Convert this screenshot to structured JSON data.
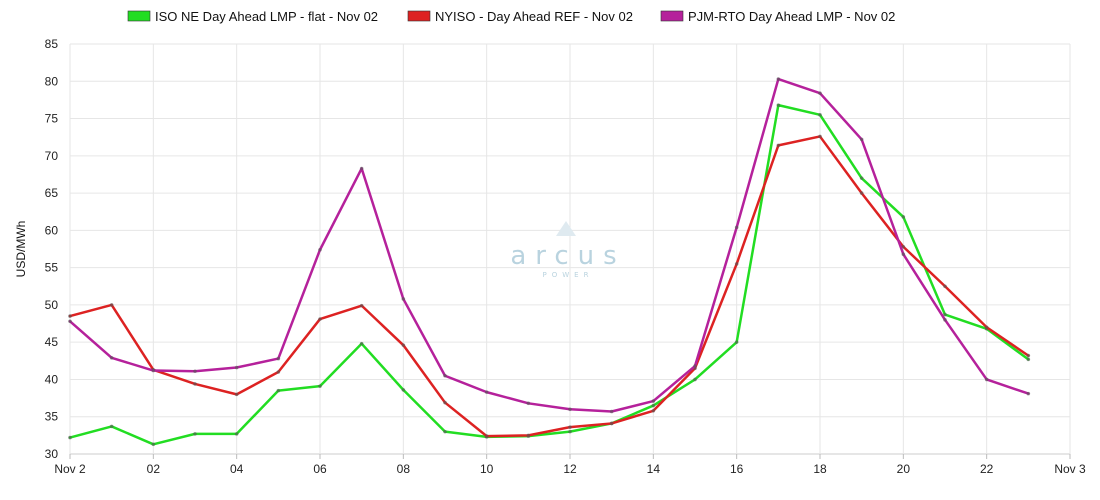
{
  "chart_data": {
    "type": "line",
    "ylabel": "USD/MWh",
    "ylim": [
      30,
      85
    ],
    "y_ticks": [
      30,
      35,
      40,
      45,
      50,
      55,
      60,
      65,
      70,
      75,
      80,
      85
    ],
    "x_ticks": [
      "Nov 2",
      "02",
      "04",
      "06",
      "08",
      "10",
      "12",
      "14",
      "16",
      "18",
      "20",
      "22",
      "Nov 3"
    ],
    "grid": true,
    "legend_position": "top",
    "x": [
      0,
      1,
      2,
      3,
      4,
      5,
      6,
      7,
      8,
      9,
      10,
      11,
      12,
      13,
      14,
      15,
      16,
      17,
      18,
      19,
      20,
      21,
      22,
      23
    ],
    "series": [
      {
        "name": "ISO NE Day Ahead LMP - flat - Nov 02",
        "color": "#22dd22",
        "values": [
          32.2,
          33.7,
          31.3,
          32.7,
          32.7,
          38.5,
          39.1,
          44.8,
          38.6,
          33.0,
          32.3,
          32.4,
          33.0,
          34.1,
          36.5,
          40.0,
          45.0,
          76.8,
          75.5,
          67.0,
          61.8,
          48.7,
          46.8,
          42.7
        ]
      },
      {
        "name": "NYISO - Day Ahead REF - Nov 02",
        "color": "#dd2222",
        "values": [
          48.5,
          50.0,
          41.3,
          39.4,
          38.0,
          41.0,
          48.1,
          49.9,
          44.6,
          36.9,
          32.4,
          32.5,
          33.6,
          34.1,
          35.8,
          41.5,
          55.5,
          71.4,
          72.6,
          65.0,
          57.8,
          52.5,
          47.0,
          43.2
        ]
      },
      {
        "name": "PJM-RTO Day Ahead LMP - Nov 02",
        "color": "#b5219b",
        "values": [
          47.8,
          42.9,
          41.2,
          41.1,
          41.6,
          42.8,
          57.4,
          68.3,
          50.8,
          40.5,
          38.3,
          36.8,
          36.0,
          35.7,
          37.1,
          41.8,
          60.4,
          80.3,
          78.4,
          72.2,
          56.8,
          48.0,
          40.0,
          38.1
        ]
      }
    ]
  },
  "watermark": {
    "brand": "arcus",
    "sub": "POWER"
  }
}
